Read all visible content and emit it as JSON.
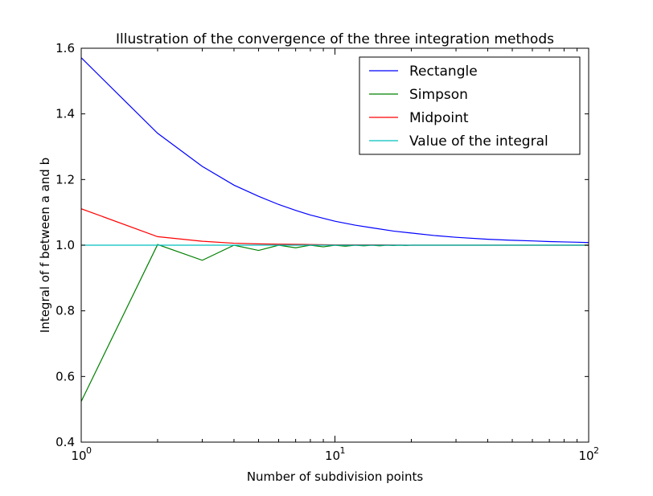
{
  "chart_data": {
    "type": "line",
    "title": "Illustration of the convergence of the three integration methods",
    "xlabel": "Number of subdivision points",
    "ylabel": "Integral of f between a and b",
    "xscale": "log",
    "xlim": [
      1,
      100
    ],
    "ylim": [
      0.4,
      1.6
    ],
    "x_ticks": [
      {
        "value": 1,
        "base": "10",
        "exp": "0"
      },
      {
        "value": 10,
        "base": "10",
        "exp": "1"
      },
      {
        "value": 100,
        "base": "10",
        "exp": "2"
      }
    ],
    "y_ticks": [
      "0.4",
      "0.6",
      "0.8",
      "1.0",
      "1.2",
      "1.4",
      "1.6"
    ],
    "grid": false,
    "legend_position": "top-right",
    "series": [
      {
        "name": "Rectangle",
        "color": "#0000ff",
        "x": [
          1,
          2,
          3,
          4,
          5,
          6,
          7,
          8,
          9,
          10,
          12,
          14,
          17,
          20,
          25,
          30,
          40,
          50,
          60,
          70,
          80,
          90,
          100
        ],
        "y": [
          1.571,
          1.341,
          1.24,
          1.183,
          1.149,
          1.124,
          1.106,
          1.092,
          1.082,
          1.073,
          1.061,
          1.053,
          1.043,
          1.037,
          1.029,
          1.024,
          1.018,
          1.015,
          1.013,
          1.011,
          1.01,
          1.009,
          1.008
        ]
      },
      {
        "name": "Simpson",
        "color": "#008000",
        "x": [
          1,
          2,
          3,
          4,
          5,
          6,
          7,
          8,
          9,
          10,
          11,
          12,
          13,
          14,
          15,
          16,
          17,
          18,
          19,
          20,
          30,
          50,
          100
        ],
        "y": [
          0.524,
          1.002,
          0.954,
          1.0,
          0.984,
          1.0,
          0.992,
          1.0,
          0.995,
          1.0,
          0.997,
          1.0,
          0.998,
          1.0,
          0.998,
          1.0,
          0.999,
          1.0,
          0.999,
          1.0,
          1.0,
          1.0,
          1.0
        ]
      },
      {
        "name": "Midpoint",
        "color": "#ff0000",
        "x": [
          1,
          2,
          3,
          4,
          5,
          6,
          8,
          10,
          15,
          20,
          30,
          50,
          100
        ],
        "y": [
          1.111,
          1.026,
          1.012,
          1.006,
          1.004,
          1.003,
          1.002,
          1.001,
          1.001,
          1.0,
          1.0,
          1.0,
          1.0
        ]
      },
      {
        "name": "Value of the integral",
        "color": "#00bfbf",
        "x": [
          1,
          100
        ],
        "y": [
          1.0,
          1.0
        ]
      }
    ]
  }
}
